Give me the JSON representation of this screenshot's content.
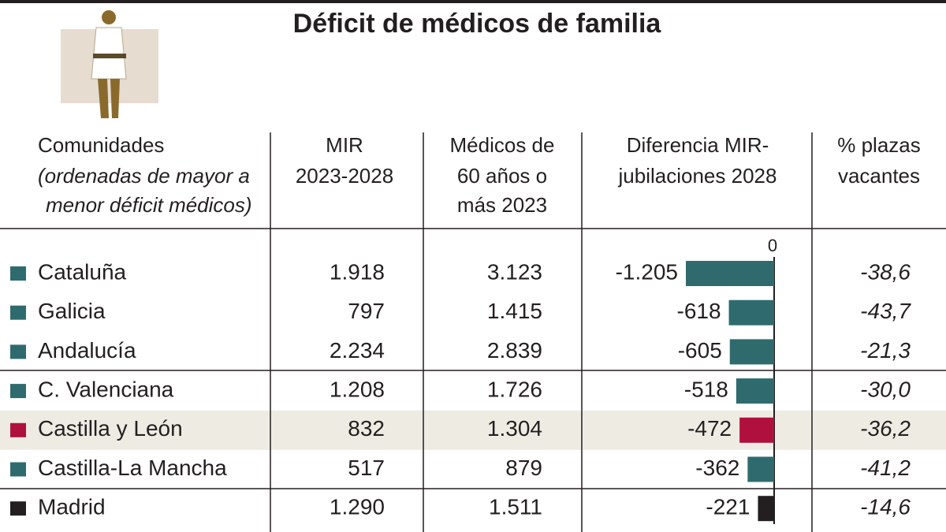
{
  "title": "Déficit de médicos de familia",
  "table": {
    "header": {
      "comunidades": [
        "Comunidades",
        "(ordenadas de mayor a",
        "menor déficit médicos)"
      ],
      "mir": [
        "MIR",
        "2023-2028"
      ],
      "medicos": [
        "Médicos de",
        "60 años o",
        "más 2023"
      ],
      "diferencia": [
        "Diferencia MIR-",
        "jubilaciones 2028"
      ],
      "vacantes": [
        "% plazas",
        "vacantes"
      ]
    },
    "axis_zero": 0,
    "rows": [
      {
        "name": "Cataluña",
        "color": "#2f6b6e",
        "mir": "1.918",
        "medicos": "3.123",
        "diferencia": {
          "value": -1205,
          "label": "-1.205"
        },
        "vacantes": "-38,6"
      },
      {
        "name": "Galicia",
        "color": "#2f6b6e",
        "mir": "797",
        "medicos": "1.415",
        "diferencia": {
          "value": -618,
          "label": "-618"
        },
        "vacantes": "-43,7"
      },
      {
        "name": "Andalucía",
        "color": "#2f6b6e",
        "mir": "2.234",
        "medicos": "2.839",
        "diferencia": {
          "value": -605,
          "label": "-605"
        },
        "vacantes": "-21,3"
      },
      {
        "name": "C. Valenciana",
        "color": "#2f6b6e",
        "mir": "1.208",
        "medicos": "1.726",
        "diferencia": {
          "value": -518,
          "label": "-518"
        },
        "vacantes": "-30,0"
      },
      {
        "name": "Castilla y León",
        "color": "#b0103e",
        "highlight": true,
        "mir": "832",
        "medicos": "1.304",
        "diferencia": {
          "value": -472,
          "label": "-472"
        },
        "vacantes": "-36,2"
      },
      {
        "name": "Castilla-La Mancha",
        "color": "#2f6b6e",
        "mir": "517",
        "medicos": "879",
        "diferencia": {
          "value": -362,
          "label": "-362"
        },
        "vacantes": "-41,2"
      },
      {
        "name": "Madrid",
        "color": "#231f20",
        "mir": "1.290",
        "medicos": "1.511",
        "diferencia": {
          "value": -221,
          "label": "-221"
        },
        "vacantes": "-14,6"
      }
    ]
  }
}
